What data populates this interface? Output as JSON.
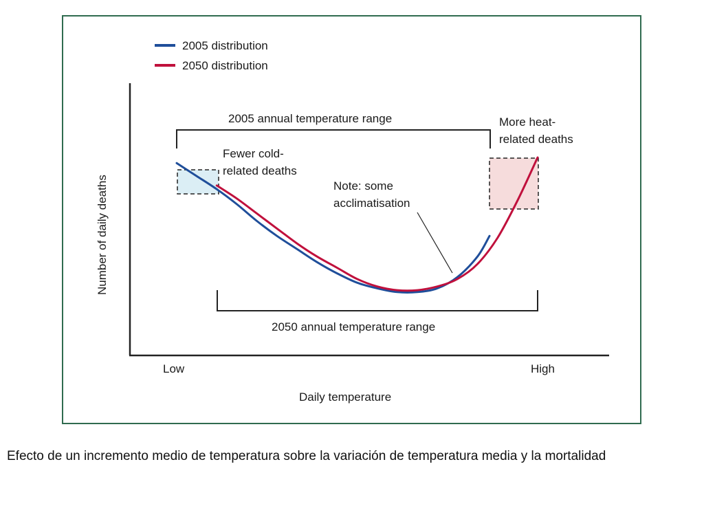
{
  "chart_data": {
    "type": "line",
    "xlabel": "Daily temperature",
    "ylabel": "Number of daily deaths",
    "x_tick_labels": [
      "Low",
      "High"
    ],
    "series": [
      {
        "name": "2005 distribution",
        "color": "#1f4e9a",
        "x": [
          0,
          5,
          10,
          15,
          20,
          25,
          30,
          35,
          40,
          45,
          50,
          55,
          60,
          65,
          70,
          75,
          78
        ],
        "y": [
          72,
          65,
          58,
          50,
          41,
          33,
          26,
          19,
          13,
          8,
          5,
          3,
          3,
          5,
          11,
          22,
          33
        ]
      },
      {
        "name": "2050 distribution",
        "color": "#c0103c",
        "x": [
          10,
          15,
          20,
          25,
          30,
          35,
          40,
          45,
          50,
          55,
          60,
          65,
          70,
          75,
          80,
          85,
          90
        ],
        "y": [
          60,
          53,
          45,
          37,
          29,
          22,
          16,
          10,
          6,
          4,
          4,
          6,
          10,
          18,
          32,
          52,
          75
        ]
      }
    ],
    "annotations": {
      "range_2005": "2005 annual temperature range",
      "range_2050": "2050 annual temperature range",
      "cold_line1": "Fewer cold-",
      "cold_line2": "related deaths",
      "heat_line1": "More heat-",
      "heat_line2": "related deaths",
      "note_line1": "Note: some",
      "note_line2": "acclimatisation"
    },
    "legend_position": "top-left",
    "grid": false
  },
  "caption": "Efecto de un incremento medio de temperatura sobre la variación de temperatura media y la mortalidad"
}
